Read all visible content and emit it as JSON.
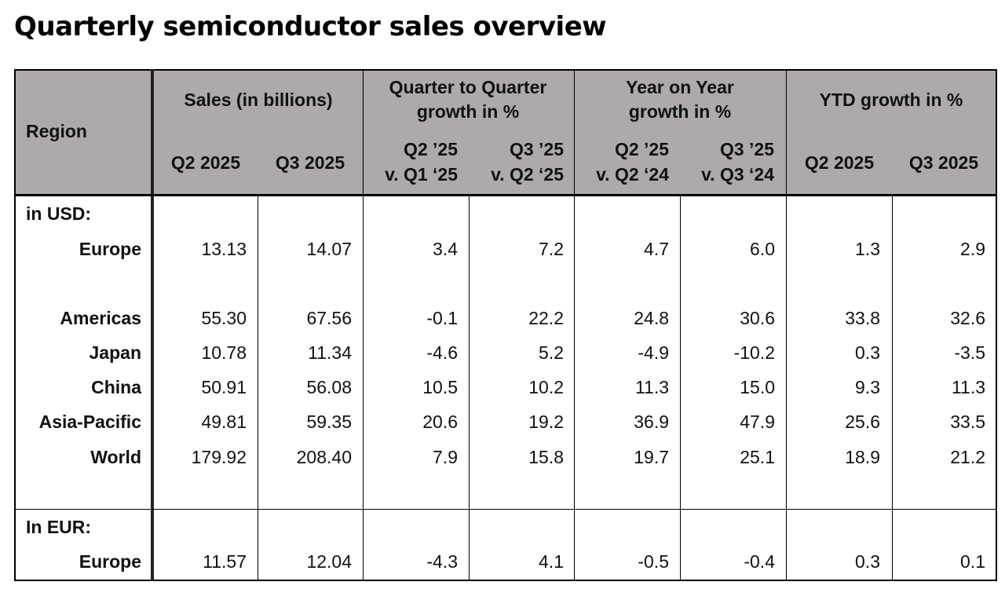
{
  "title": "Quarterly semiconductor sales overview",
  "headers": {
    "region": "Region",
    "sales": "Sales (in billions)",
    "q2025_2": "Q2 2025",
    "q2025_3": "Q3 2025",
    "qoq_line1": "Quarter to Quarter",
    "qoq_line2": "growth in %",
    "qoq_a1": "Q2 ’25",
    "qoq_a2": "v. Q1 ‘25",
    "qoq_b1": "Q3 ’25",
    "qoq_b2": "v. Q2 ‘25",
    "yoy_line1": "Year on Year",
    "yoy_line2": "growth in %",
    "yoy_a1": "Q2 ’25",
    "yoy_a2": "v. Q2 ‘24",
    "yoy_b1": "Q3 ’25",
    "yoy_b2": "v. Q3 ‘24",
    "ytd": "YTD growth in %",
    "ytd_a": "Q2 2025",
    "ytd_b": "Q3 2025"
  },
  "sections": {
    "usd": "in USD:",
    "eur": "In EUR:"
  },
  "rows": [
    {
      "region": "Europe",
      "values": [
        "13.13",
        "14.07",
        "3.4",
        "7.2",
        "4.7",
        "6.0",
        "1.3",
        "2.9"
      ]
    },
    {
      "region": "Americas",
      "values": [
        "55.30",
        "67.56",
        "-0.1",
        "22.2",
        "24.8",
        "30.6",
        "33.8",
        "32.6"
      ]
    },
    {
      "region": "Japan",
      "values": [
        "10.78",
        "11.34",
        "-4.6",
        "5.2",
        "-4.9",
        "-10.2",
        "0.3",
        "-3.5"
      ]
    },
    {
      "region": "China",
      "values": [
        "50.91",
        "56.08",
        "10.5",
        "10.2",
        "11.3",
        "15.0",
        "9.3",
        "11.3"
      ]
    },
    {
      "region": "Asia-Pacific",
      "values": [
        "49.81",
        "59.35",
        "20.6",
        "19.2",
        "36.9",
        "47.9",
        "25.6",
        "33.5"
      ]
    },
    {
      "region": "World",
      "values": [
        "179.92",
        "208.40",
        "7.9",
        "15.8",
        "19.7",
        "25.1",
        "18.9",
        "21.2"
      ]
    },
    {
      "region": "Europe",
      "values": [
        "11.57",
        "12.04",
        "-4.3",
        "4.1",
        "-0.5",
        "-0.4",
        "0.3",
        "0.1"
      ]
    }
  ]
}
